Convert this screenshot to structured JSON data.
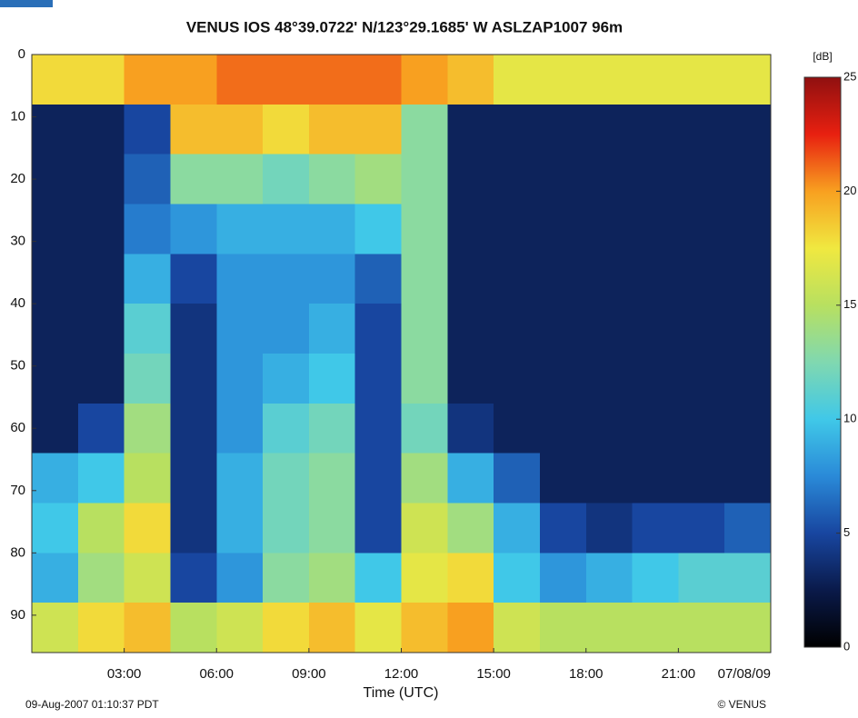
{
  "chart_data": {
    "type": "heatmap",
    "title": "VENUS  IOS  48°39.0722' N/123°29.1685' W   ASLZAP1007   96m",
    "x_label": "Time (UTC)",
    "colorbar_label": "[dB]",
    "footer_left": "09-Aug-2007 01:10:37 PDT",
    "footer_right": "© VENUS",
    "x": [
      0.75,
      2.25,
      3.75,
      5.25,
      6.75,
      8.25,
      9.75,
      11.25,
      12.75,
      14.25,
      15.75,
      17.25,
      18.75,
      20.25,
      21.75,
      23.25
    ],
    "y": [
      4,
      12,
      20,
      28,
      36,
      44,
      52,
      60,
      68,
      76,
      84,
      92
    ],
    "z": [
      [
        18,
        18,
        20,
        20,
        21,
        21,
        21,
        21,
        20,
        19,
        17,
        17,
        17,
        17,
        17,
        17
      ],
      [
        3,
        3,
        5,
        19,
        19,
        18,
        19,
        19,
        13,
        3,
        3,
        3,
        3,
        3,
        3,
        3
      ],
      [
        3,
        3,
        6,
        13,
        13,
        12,
        13,
        14,
        13,
        3,
        3,
        3,
        3,
        3,
        3,
        3
      ],
      [
        3,
        3,
        7,
        8,
        9,
        9,
        9,
        10,
        13,
        3,
        3,
        3,
        3,
        3,
        3,
        3
      ],
      [
        3,
        3,
        9,
        5,
        8,
        8,
        8,
        6,
        13,
        3,
        3,
        3,
        3,
        3,
        3,
        3
      ],
      [
        3,
        3,
        11,
        4,
        8,
        8,
        9,
        5,
        13,
        3,
        3,
        3,
        3,
        3,
        3,
        3
      ],
      [
        3,
        3,
        12,
        4,
        8,
        9,
        10,
        5,
        13,
        3,
        3,
        3,
        3,
        3,
        3,
        3
      ],
      [
        3,
        5,
        14,
        4,
        8,
        11,
        12,
        5,
        12,
        4,
        3,
        3,
        3,
        3,
        3,
        3
      ],
      [
        9,
        10,
        15,
        4,
        9,
        12,
        13,
        5,
        14,
        9,
        6,
        3,
        3,
        3,
        3,
        3
      ],
      [
        10,
        15,
        18,
        4,
        9,
        12,
        13,
        5,
        16,
        14,
        9,
        5,
        4,
        5,
        5,
        6
      ],
      [
        9,
        14,
        16,
        5,
        8,
        13,
        14,
        10,
        17,
        18,
        10,
        8,
        9,
        10,
        11,
        11
      ],
      [
        16,
        18,
        19,
        15,
        16,
        18,
        19,
        17,
        19,
        20,
        16,
        15,
        15,
        15,
        15,
        15
      ]
    ],
    "xlim": [
      0,
      24
    ],
    "xticks": [
      {
        "value": 3,
        "label": "03:00"
      },
      {
        "value": 6,
        "label": "06:00"
      },
      {
        "value": 9,
        "label": "09:00"
      },
      {
        "value": 12,
        "label": "12:00"
      },
      {
        "value": 15,
        "label": "15:00"
      },
      {
        "value": 18,
        "label": "18:00"
      },
      {
        "value": 21,
        "label": "21:00"
      },
      {
        "value": 24,
        "label": "07/08/09"
      }
    ],
    "ylim": [
      0,
      96
    ],
    "y_inverted": true,
    "yticks": [
      0,
      10,
      20,
      30,
      40,
      50,
      60,
      70,
      80,
      90
    ],
    "zlim": [
      0,
      25
    ],
    "zticks": [
      0,
      5,
      10,
      15,
      20,
      25
    ],
    "colorscale": [
      "#000000",
      "#0a1a4a",
      "#1846a0",
      "#2a8ad8",
      "#40c8e8",
      "#80d8b0",
      "#b8e060",
      "#f0e840",
      "#f8a020",
      "#e82010",
      "#901010"
    ]
  }
}
